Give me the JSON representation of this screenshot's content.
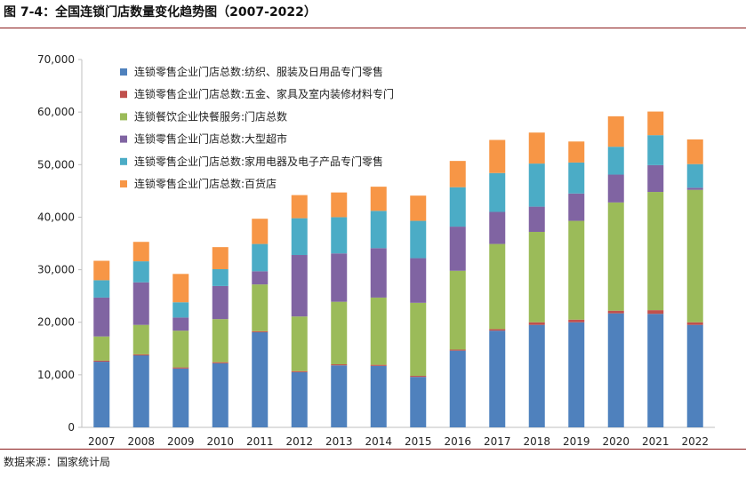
{
  "title": "图 7-4：全国连锁门店数量变化趋势图（2007-2022）",
  "source": "数据来源：国家统计局",
  "chart_data": {
    "type": "bar",
    "stacked": true,
    "categories": [
      "2007",
      "2008",
      "2009",
      "2010",
      "2011",
      "2012",
      "2013",
      "2014",
      "2015",
      "2016",
      "2017",
      "2018",
      "2019",
      "2020",
      "2021",
      "2022"
    ],
    "ylim": [
      0,
      70000
    ],
    "yticks": [
      0,
      10000,
      20000,
      30000,
      40000,
      50000,
      60000,
      70000
    ],
    "ytick_labels": [
      "0",
      "10,000",
      "20,000",
      "30,000",
      "40,000",
      "50,000",
      "60,000",
      "70,000"
    ],
    "legend_position": "top-left",
    "series": [
      {
        "name": "连锁零售企业门店总数:纺织、服装及日用品专门零售",
        "color": "#4f81bd",
        "values": [
          12500,
          13700,
          11200,
          12200,
          18100,
          10500,
          11800,
          11700,
          9600,
          14600,
          18400,
          19500,
          20000,
          21700,
          21600,
          19500
        ]
      },
      {
        "name": "连锁零售企业门店总数:五金、家具及室内装修材料专门",
        "color": "#c0504d",
        "values": [
          200,
          200,
          200,
          200,
          200,
          200,
          200,
          200,
          200,
          200,
          300,
          500,
          500,
          500,
          700,
          500
        ]
      },
      {
        "name": "连锁餐饮企业快餐服务:门店总数",
        "color": "#9bbb59",
        "values": [
          4600,
          5600,
          7000,
          8200,
          8900,
          10400,
          11900,
          12800,
          13900,
          15000,
          16200,
          17200,
          18800,
          20600,
          22500,
          25200
        ]
      },
      {
        "name": "连锁零售企业门店总数:大型超市",
        "color": "#8064a2",
        "values": [
          7400,
          8100,
          2500,
          6300,
          2500,
          11700,
          9200,
          9400,
          8500,
          8400,
          6100,
          4800,
          5200,
          5300,
          5100,
          400
        ]
      },
      {
        "name": "连锁零售企业门店总数:家用电器及电子产品专门零售",
        "color": "#4bacc6",
        "values": [
          3300,
          4000,
          2900,
          3200,
          5200,
          7000,
          6900,
          7100,
          7100,
          7500,
          7400,
          8200,
          5900,
          5300,
          5700,
          4500
        ]
      },
      {
        "name": "连锁零售企业门店总数:百货店",
        "color": "#f79646",
        "values": [
          3700,
          3700,
          5400,
          4200,
          4800,
          4400,
          4700,
          4600,
          4800,
          5000,
          6300,
          5900,
          4000,
          5800,
          4500,
          4700
        ]
      }
    ]
  }
}
